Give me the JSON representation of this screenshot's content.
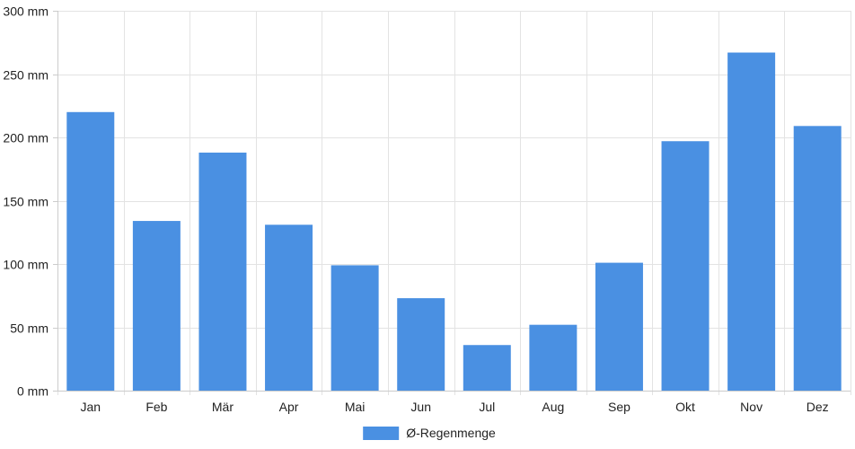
{
  "chart_data": {
    "type": "bar",
    "categories": [
      "Jan",
      "Feb",
      "Mär",
      "Apr",
      "Mai",
      "Jun",
      "Jul",
      "Aug",
      "Sep",
      "Okt",
      "Nov",
      "Dez"
    ],
    "series": [
      {
        "name": "Ø-Regenmenge",
        "color": "#4a90e2",
        "values": [
          220,
          134,
          188,
          131,
          99,
          73,
          36,
          52,
          101,
          197,
          267,
          209
        ]
      }
    ],
    "title": "",
    "xlabel": "",
    "ylabel": "",
    "ylim": [
      0,
      300
    ],
    "yticks": [
      0,
      50,
      100,
      150,
      200,
      250,
      300
    ],
    "ytick_suffix": " mm",
    "ytick_labels": [
      "0 mm",
      "50 mm",
      "100 mm",
      "150 mm",
      "200 mm",
      "250 mm",
      "300 mm"
    ],
    "grid": true,
    "legend_position": "bottom-center"
  }
}
